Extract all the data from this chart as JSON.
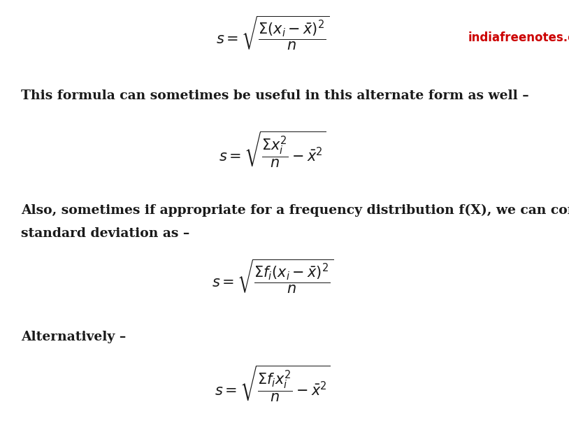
{
  "background_color": "#ffffff",
  "watermark_text": "indiafreenotes.com",
  "watermark_color": "#cc0000",
  "watermark_fontsize": 12,
  "text_color": "#1a1a1a",
  "formula_color": "#1a1a1a",
  "para_text_color": "#1a1a1a",
  "formula1": "$s = \\sqrt{\\dfrac{\\Sigma(x_i-\\bar{x})^2}{n}}$",
  "formula2": "$s = \\sqrt{\\dfrac{\\Sigma x_i^2}{n} - \\bar{x}^2}$",
  "formula3": "$s = \\sqrt{\\dfrac{\\Sigma f_i(x_i-\\bar{x})^2}{n}}$",
  "formula4": "$s = \\sqrt{\\dfrac{\\Sigma f_i x_i^2}{n} - \\bar{x}^2}$",
  "para1": "This formula can sometimes be useful in this alternate form as well –",
  "para2_line1": "Also, sometimes if appropriate for a frequency distribution f(X), we can compute the",
  "para2_line2": "standard deviation as –",
  "para3": "Alternatively –",
  "text_fontsize": 13.5,
  "formula_fontsize": 15
}
